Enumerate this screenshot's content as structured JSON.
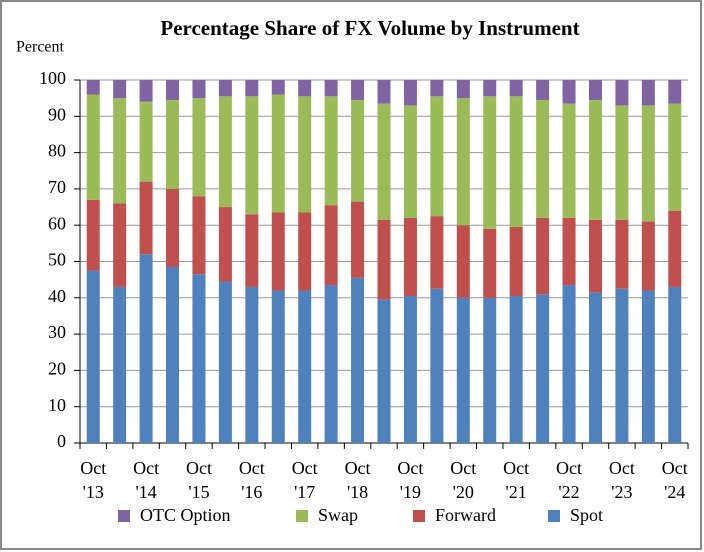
{
  "chart_data": {
    "type": "stacked_bar",
    "title": "Percentage Share of FX Volume by Instrument",
    "y_label": "Percent",
    "categories": [
      "Oct '13",
      null,
      "Oct '14",
      null,
      "Oct '15",
      null,
      "Oct '16",
      null,
      "Oct '17",
      null,
      "Oct '18",
      null,
      "Oct '19",
      null,
      "Oct '20",
      null,
      "Oct '21",
      null,
      "Oct '22",
      null,
      "Oct '23",
      null,
      "Oct '24"
    ],
    "series": [
      {
        "name": "Spot",
        "color": "#4f81bd",
        "values": [
          47.5,
          43,
          52,
          48.5,
          46.5,
          44.5,
          43,
          42,
          42,
          43.5,
          45.5,
          39.5,
          40.5,
          42.5,
          40,
          40,
          40.5,
          41,
          43.5,
          41.5,
          42.5,
          42,
          43
        ]
      },
      {
        "name": "Forward",
        "color": "#c0504d",
        "values": [
          19.5,
          23,
          20,
          21.5,
          21.5,
          20.5,
          20,
          21.5,
          21.5,
          22,
          21,
          22,
          21.5,
          20,
          20,
          19,
          19,
          21,
          18.5,
          20,
          19,
          19,
          21
        ]
      },
      {
        "name": "Swap",
        "color": "#9bbb59",
        "values": [
          29,
          29,
          22,
          24.5,
          27,
          30.5,
          32.5,
          32.5,
          32,
          30,
          28,
          32,
          31,
          33,
          35,
          36.5,
          36,
          32.5,
          31.5,
          33,
          31.5,
          32,
          29.5
        ]
      },
      {
        "name": "OTC Option",
        "color": "#8064a2",
        "values": [
          4,
          5,
          6,
          5.5,
          5,
          4.5,
          4.5,
          4,
          4.5,
          4.5,
          5.5,
          6.5,
          7,
          4.5,
          5,
          4.5,
          4.5,
          5.5,
          6.5,
          5.5,
          7,
          7,
          6.5
        ]
      }
    ],
    "ylim": [
      0,
      100
    ],
    "yticks": [
      0,
      10,
      20,
      30,
      40,
      50,
      60,
      70,
      80,
      90,
      100
    ],
    "grid": true,
    "legend": "bottom"
  }
}
